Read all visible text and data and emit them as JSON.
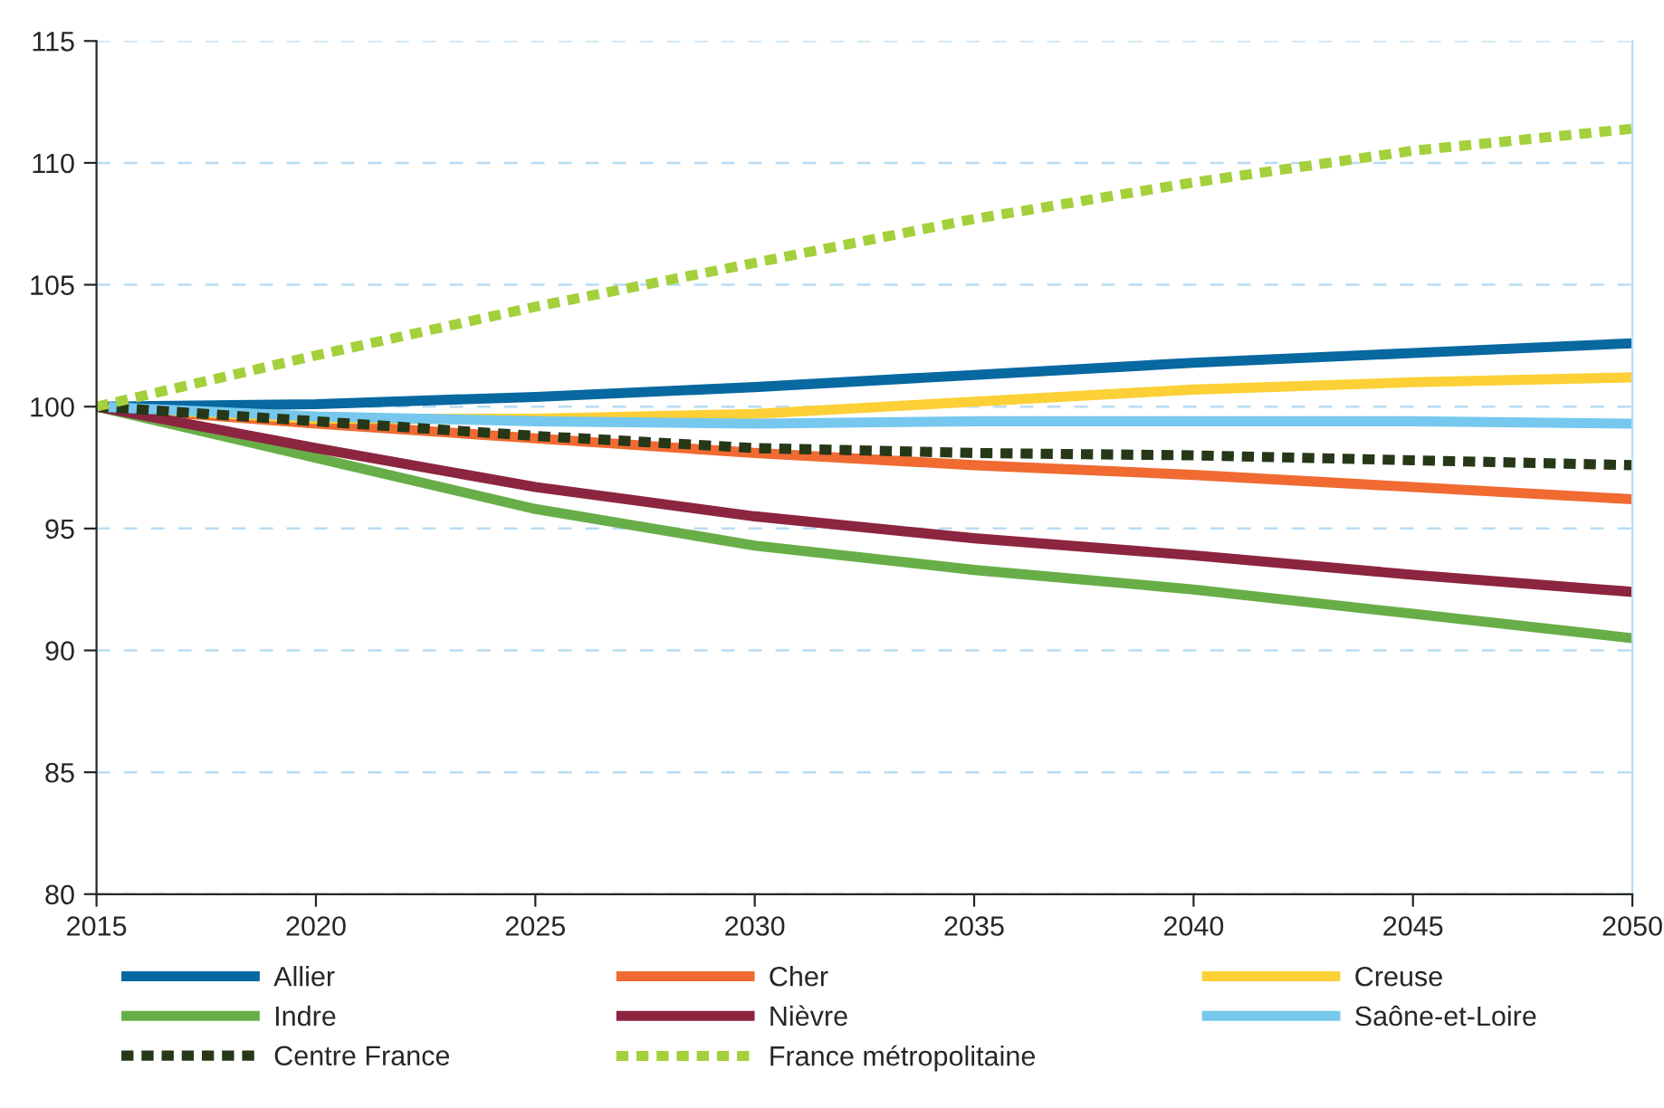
{
  "chart_data": {
    "type": "line",
    "x": [
      2015,
      2020,
      2025,
      2030,
      2035,
      2040,
      2045,
      2050
    ],
    "xlim": [
      2015,
      2050
    ],
    "xticks": [
      2015,
      2020,
      2025,
      2030,
      2035,
      2040,
      2045,
      2050
    ],
    "ylim": [
      80,
      115
    ],
    "yticks": [
      80,
      85,
      90,
      95,
      100,
      105,
      110,
      115
    ],
    "grid": "y",
    "legend": "bottom",
    "marker": "none",
    "series": [
      {
        "name": "Allier",
        "color": "#0868a0",
        "values": [
          100,
          100.1,
          100.4,
          100.8,
          101.3,
          101.8,
          102.2,
          102.6
        ]
      },
      {
        "name": "Cher",
        "color": "#f06a32",
        "values": [
          100,
          99.3,
          98.7,
          98.1,
          97.6,
          97.2,
          96.7,
          96.2
        ]
      },
      {
        "name": "Creuse",
        "color": "#fcd036",
        "values": [
          100,
          99.5,
          99.5,
          99.7,
          100.2,
          100.7,
          101.0,
          101.2
        ]
      },
      {
        "name": "Indre",
        "color": "#68ae48",
        "values": [
          100,
          97.9,
          95.8,
          94.3,
          93.3,
          92.5,
          91.5,
          90.5
        ]
      },
      {
        "name": "Nièvre",
        "color": "#8c2540",
        "values": [
          100,
          98.3,
          96.7,
          95.5,
          94.6,
          93.9,
          93.1,
          92.4
        ]
      },
      {
        "name": "Saône-et-Loire",
        "color": "#76c8ee",
        "values": [
          100,
          99.6,
          99.4,
          99.3,
          99.4,
          99.4,
          99.4,
          99.3
        ]
      },
      {
        "name": "Centre France",
        "color": "#263818",
        "line_style": "dotted",
        "values": [
          100,
          99.4,
          98.8,
          98.3,
          98.1,
          98.0,
          97.8,
          97.6
        ]
      },
      {
        "name": "France métropolitaine",
        "color": "#a4d03c",
        "line_style": "dotted",
        "values": [
          100,
          102.1,
          104.1,
          105.9,
          107.7,
          109.2,
          110.5,
          111.4
        ]
      }
    ]
  }
}
